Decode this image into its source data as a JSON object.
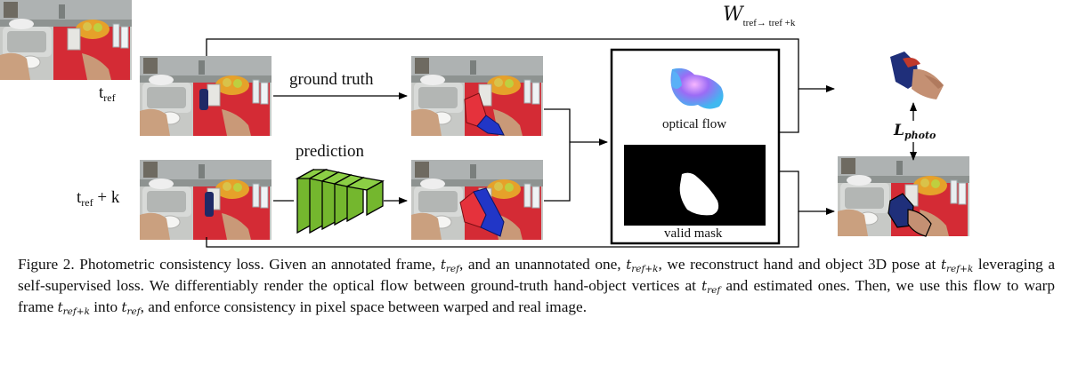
{
  "labels": {
    "t_ref_main": "t",
    "t_ref_sub": "ref",
    "t_refk_main": "t",
    "t_refk_sub": "ref",
    "t_refk_plus": " + k",
    "ground_truth": "ground truth",
    "prediction": "prediction",
    "optical_flow": "optical flow",
    "valid_mask": "valid mask",
    "W_symbol": "W",
    "W_sub": "tref→ tref +k",
    "L_symbol": "L",
    "L_sub": "photo"
  },
  "caption": {
    "p1": "Figure 2. Photometric consistency loss. Given an annotated frame, ",
    "t_ref_var": "t",
    "ref_sub": "ref",
    "p2": ", and an unannotated one, ",
    "t_refk_var": "t",
    "refk_sub": "ref+k",
    "p3": ", we reconstruct hand and object 3D pose at ",
    "p4": " leveraging a self-supervised loss. We differentiably render the optical flow between ground-truth hand-object vertices at ",
    "p5": " and estimated ones. Then, we use this flow to warp frame ",
    "p6": " into ",
    "p7": ", and enforce consistency in pixel space between warped and real image."
  },
  "colors": {
    "table_red": "#d42b35",
    "object_red": "#e5323c",
    "hand_blue": "#2136c7",
    "network_green": "#74b72e",
    "mask_black": "#000000",
    "flow_magenta": "#d56ef0",
    "flow_cyan": "#4fc3f7"
  }
}
